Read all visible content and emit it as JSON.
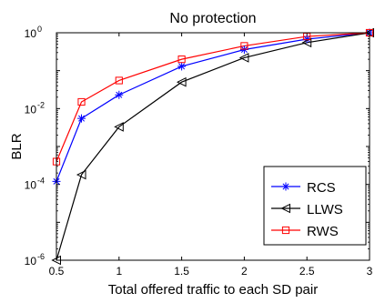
{
  "chart_data": {
    "type": "line",
    "title": "No protection",
    "xlabel": "Total offered traffic to each SD pair",
    "ylabel": "BLR",
    "x_ticks": [
      "0.5",
      "1",
      "1.5",
      "2",
      "2.5",
      "3"
    ],
    "xlim": [
      0.5,
      3
    ],
    "ylim": [
      1e-06,
      1
    ],
    "yscale": "log",
    "y_ticks": [
      {
        "base": "10",
        "exp": "-6"
      },
      {
        "base": "10",
        "exp": "-4"
      },
      {
        "base": "10",
        "exp": "-2"
      },
      {
        "base": "10",
        "exp": "0"
      }
    ],
    "legend_position": "bottom-right",
    "x": [
      0.5,
      0.7,
      1.0,
      1.5,
      2.0,
      2.5,
      3.0
    ],
    "series": [
      {
        "name": "RCS",
        "color": "#0000ff",
        "marker": "asterisk",
        "values": [
          0.00012,
          0.0055,
          0.023,
          0.13,
          0.36,
          0.68,
          1.2
        ]
      },
      {
        "name": "LLWS",
        "color": "#000000",
        "marker": "triangle-left",
        "values": [
          1e-06,
          0.00018,
          0.0033,
          0.05,
          0.22,
          0.55,
          1.0
        ]
      },
      {
        "name": "RWS",
        "color": "#ff0000",
        "marker": "square",
        "values": [
          0.0004,
          0.015,
          0.055,
          0.2,
          0.45,
          0.8,
          1.3
        ]
      }
    ]
  }
}
